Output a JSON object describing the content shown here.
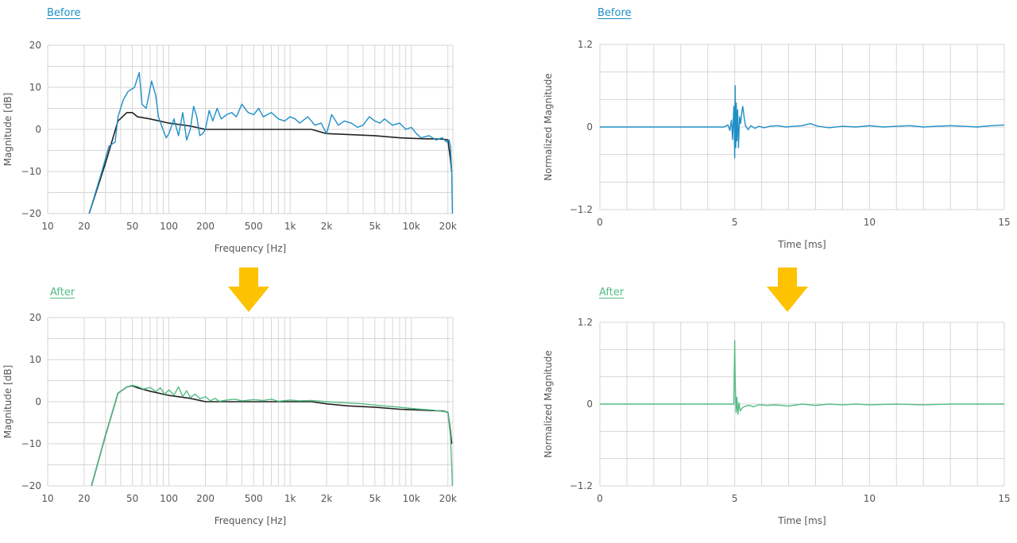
{
  "colors": {
    "before": "#1f8fc7",
    "after": "#54bc84",
    "target": "#222222",
    "grid": "#d6d6d6",
    "arrow": "#fdc200",
    "axis_text": "#555555"
  },
  "labels": {
    "before": "Before",
    "after": "After"
  },
  "arrows": [
    {
      "icon": "arrow-down-icon"
    },
    {
      "icon": "arrow-down-icon"
    }
  ],
  "chart_data": [
    {
      "id": "freq-before",
      "type": "line",
      "tag": "Before",
      "xscale": "log",
      "xlim": [
        10,
        22000
      ],
      "ylim": [
        -20,
        20
      ],
      "xticks": [
        10,
        20,
        50,
        100,
        200,
        500,
        1000,
        2000,
        5000,
        10000,
        20000
      ],
      "xtick_labels": [
        "10",
        "20",
        "50",
        "100",
        "200",
        "500",
        "1k",
        "2k",
        "5k",
        "10k",
        "20k"
      ],
      "yticks": [
        -20,
        -10,
        0,
        10,
        20
      ],
      "ytick_labels": [
        "−20",
        "−10",
        "0",
        "10",
        "20"
      ],
      "xlabel": "Frequency [Hz]",
      "ylabel": "Magnitude [dB]",
      "grid": true,
      "series": [
        {
          "role": "target",
          "color": "#222222",
          "x": [
            22,
            30,
            38,
            45,
            50,
            55,
            70,
            100,
            150,
            200,
            300,
            500,
            1000,
            1500,
            2000,
            3000,
            5000,
            8000,
            12000,
            18000,
            20000,
            21000,
            21500
          ],
          "y": [
            -20,
            -8,
            2,
            4,
            4,
            3,
            2.5,
            1.5,
            0.8,
            0,
            0,
            0,
            0,
            0,
            -1,
            -1.2,
            -1.5,
            -2,
            -2.2,
            -2.3,
            -2.5,
            -7,
            -10
          ]
        },
        {
          "role": "measured",
          "color": "#1f8fc7",
          "x": [
            22,
            28,
            32,
            36,
            38,
            42,
            46,
            52,
            57,
            60,
            65,
            72,
            78,
            82,
            88,
            95,
            100,
            110,
            120,
            130,
            140,
            150,
            160,
            170,
            180,
            190,
            200,
            215,
            230,
            250,
            270,
            300,
            330,
            360,
            400,
            450,
            500,
            550,
            600,
            700,
            800,
            900,
            1000,
            1100,
            1200,
            1400,
            1600,
            1800,
            2000,
            2200,
            2500,
            2800,
            3200,
            3600,
            4000,
            4500,
            5000,
            5500,
            6000,
            7000,
            8000,
            9000,
            10000,
            11000,
            12000,
            14000,
            16000,
            18000,
            19500,
            20500,
            21000,
            21500,
            21800
          ],
          "y": [
            -20,
            -10,
            -4,
            -3,
            3,
            7,
            9,
            10,
            13.5,
            6,
            5,
            11.5,
            8,
            3,
            0.5,
            -2,
            -1,
            2.5,
            -1.5,
            4,
            -2.5,
            0,
            5.5,
            3,
            -1.5,
            -1,
            0,
            4.5,
            2,
            5,
            2.5,
            3.5,
            4,
            3,
            6,
            4,
            3.5,
            5,
            3,
            4,
            2.5,
            2,
            3,
            2.5,
            1.5,
            3,
            1,
            1.5,
            -1,
            3.5,
            1,
            2,
            1.5,
            0.5,
            1,
            3,
            2,
            1.5,
            2.5,
            1,
            1.5,
            0,
            0.5,
            -1,
            -2,
            -1.5,
            -2.5,
            -2,
            -3,
            -2.5,
            -4,
            -10,
            -20
          ]
        }
      ]
    },
    {
      "id": "time-before",
      "type": "line",
      "tag": "Before",
      "xlim": [
        0,
        15
      ],
      "ylim": [
        -1.2,
        1.2
      ],
      "xticks": [
        0,
        5,
        10,
        15
      ],
      "xtick_labels": [
        "0",
        "5",
        "10",
        "15"
      ],
      "yticks": [
        -1.2,
        0,
        1.2
      ],
      "ytick_labels": [
        "−1.2",
        "0",
        "1.2"
      ],
      "xlabel": "Time [ms]",
      "ylabel": "Normalized Magnitude",
      "grid": true,
      "series": [
        {
          "role": "impulse",
          "color": "#1f8fc7",
          "x": [
            0,
            4.6,
            4.75,
            4.82,
            4.88,
            4.92,
            4.97,
            5.0,
            5.02,
            5.04,
            5.06,
            5.08,
            5.11,
            5.14,
            5.18,
            5.22,
            5.26,
            5.3,
            5.35,
            5.4,
            5.5,
            5.6,
            5.75,
            5.9,
            6.1,
            6.3,
            6.6,
            6.9,
            7.2,
            7.5,
            7.8,
            8.1,
            8.5,
            9.0,
            9.5,
            10.0,
            10.5,
            11.0,
            11.5,
            12.0,
            12.5,
            13.0,
            13.5,
            14.0,
            14.5,
            15.0
          ],
          "y": [
            0,
            0,
            0.03,
            -0.05,
            0.1,
            -0.18,
            0.3,
            -0.45,
            0.6,
            -0.3,
            0.35,
            -0.2,
            0.25,
            -0.3,
            0.15,
            0.05,
            0.2,
            0.3,
            0.15,
            0.02,
            -0.04,
            0.02,
            -0.02,
            0.01,
            -0.01,
            0.01,
            0.02,
            0.0,
            0.01,
            0.02,
            0.05,
            0.01,
            -0.01,
            0.01,
            0.0,
            0.02,
            0.0,
            0.01,
            0.02,
            0.0,
            0.01,
            0.02,
            0.01,
            0.0,
            0.02,
            0.03
          ]
        }
      ]
    },
    {
      "id": "freq-after",
      "type": "line",
      "tag": "After",
      "xscale": "log",
      "xlim": [
        10,
        22000
      ],
      "ylim": [
        -20,
        20
      ],
      "xticks": [
        10,
        20,
        50,
        100,
        200,
        500,
        1000,
        2000,
        5000,
        10000,
        20000
      ],
      "xtick_labels": [
        "10",
        "20",
        "50",
        "100",
        "200",
        "500",
        "1k",
        "2k",
        "5k",
        "10k",
        "20k"
      ],
      "yticks": [
        -20,
        -10,
        0,
        10,
        20
      ],
      "ytick_labels": [
        "−20",
        "−10",
        "0",
        "10",
        "20"
      ],
      "xlabel": "Frequency [Hz]",
      "ylabel": "Magnitude [dB]",
      "grid": true,
      "series": [
        {
          "role": "target",
          "color": "#222222",
          "x": [
            23,
            30,
            38,
            45,
            50,
            55,
            70,
            100,
            150,
            200,
            300,
            500,
            1000,
            1500,
            2000,
            3000,
            5000,
            8000,
            12000,
            18000,
            20000,
            21000,
            21500
          ],
          "y": [
            -20,
            -8,
            2,
            3.5,
            3.8,
            3.3,
            2.5,
            1.5,
            0.8,
            0,
            0,
            0,
            0,
            0,
            -0.5,
            -1,
            -1.3,
            -1.8,
            -2,
            -2.2,
            -2.5,
            -7,
            -10
          ]
        },
        {
          "role": "measured",
          "color": "#54bc84",
          "x": [
            23,
            30,
            38,
            45,
            50,
            55,
            62,
            70,
            78,
            85,
            92,
            100,
            110,
            120,
            130,
            140,
            150,
            165,
            180,
            200,
            220,
            240,
            260,
            300,
            350,
            400,
            500,
            600,
            700,
            800,
            1000,
            1200,
            1500,
            2000,
            2500,
            3000,
            4000,
            5000,
            6000,
            8000,
            10000,
            12000,
            15000,
            18000,
            20000,
            21000,
            21500,
            21800
          ],
          "y": [
            -20,
            -8,
            2,
            3.5,
            3.9,
            3.6,
            3,
            3.4,
            2.4,
            3.3,
            1.8,
            2.8,
            1.6,
            3.5,
            1.2,
            2.6,
            1,
            1.8,
            0.7,
            1.2,
            0.2,
            0.8,
            0.1,
            0.4,
            0.6,
            0.2,
            0.5,
            0.3,
            0.6,
            0.1,
            0.4,
            0.2,
            0.3,
            0,
            -0.2,
            -0.3,
            -0.5,
            -0.8,
            -1,
            -1.3,
            -1.6,
            -1.8,
            -2,
            -2.3,
            -2.5,
            -8,
            -15,
            -20
          ]
        }
      ]
    },
    {
      "id": "time-after",
      "type": "line",
      "tag": "After",
      "xlim": [
        0,
        15
      ],
      "ylim": [
        -1.2,
        1.2
      ],
      "xticks": [
        0,
        5,
        10,
        15
      ],
      "xtick_labels": [
        "0",
        "5",
        "10",
        "15"
      ],
      "yticks": [
        -1.2,
        0,
        1.2
      ],
      "ytick_labels": [
        "−1.2",
        "0",
        "1.2"
      ],
      "xlabel": "Time [ms]",
      "ylabel": "Normalized Magnitude",
      "grid": true,
      "series": [
        {
          "role": "impulse",
          "color": "#54bc84",
          "x": [
            0,
            4.9,
            4.97,
            5.0,
            5.02,
            5.05,
            5.08,
            5.12,
            5.16,
            5.2,
            5.3,
            5.4,
            5.55,
            5.7,
            5.9,
            6.2,
            6.5,
            7.0,
            7.5,
            8.0,
            8.5,
            9.0,
            9.5,
            10.0,
            11.0,
            12.0,
            13.0,
            14.0,
            15.0
          ],
          "y": [
            0,
            0,
            0.0,
            0.93,
            0.35,
            -0.12,
            0.1,
            -0.15,
            0.02,
            -0.1,
            -0.05,
            -0.03,
            -0.02,
            -0.04,
            -0.01,
            -0.02,
            -0.01,
            -0.03,
            0.0,
            -0.02,
            0.0,
            -0.01,
            0.0,
            -0.01,
            0.0,
            -0.01,
            0.0,
            0.0,
            0.0
          ]
        }
      ]
    }
  ]
}
